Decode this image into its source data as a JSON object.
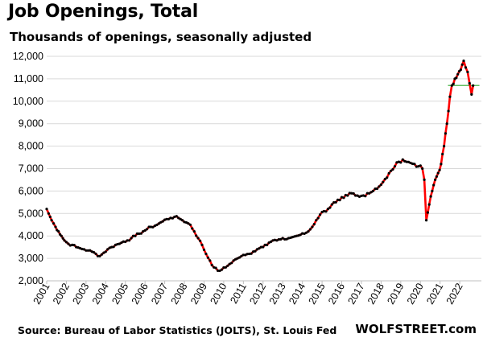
{
  "chart_data": {
    "type": "line",
    "title": "Job Openings, Total",
    "subtitle": "Thousands of openings, seasonally adjusted",
    "xlabel": "",
    "ylabel": "",
    "ylim": [
      2000,
      12000
    ],
    "xlim": [
      2001.0,
      2023.1
    ],
    "y_ticks": [
      "2,000",
      "3,000",
      "4,000",
      "5,000",
      "6,000",
      "7,000",
      "8,000",
      "9,000",
      "10,000",
      "11,000",
      "12,000"
    ],
    "y_tick_values": [
      2000,
      3000,
      4000,
      5000,
      6000,
      7000,
      8000,
      9000,
      10000,
      11000,
      12000
    ],
    "x_ticks": [
      "2001",
      "2002",
      "2003",
      "2004",
      "2005",
      "2006",
      "2007",
      "2008",
      "2009",
      "2010",
      "2011",
      "2012",
      "2013",
      "2014",
      "2015",
      "2016",
      "2017",
      "2018",
      "2019",
      "2020",
      "2021",
      "2022"
    ],
    "grid": true,
    "series": [
      {
        "color": "#ff0000",
        "marker_color": "#000000",
        "points": [
          [
            2001.0,
            5200
          ],
          [
            2001.1,
            5000
          ],
          [
            2001.25,
            4700
          ],
          [
            2001.45,
            4400
          ],
          [
            2001.6,
            4200
          ],
          [
            2001.75,
            4000
          ],
          [
            2001.9,
            3800
          ],
          [
            2002.1,
            3650
          ],
          [
            2002.3,
            3600
          ],
          [
            2002.5,
            3500
          ],
          [
            2002.7,
            3450
          ],
          [
            2002.9,
            3400
          ],
          [
            2003.1,
            3350
          ],
          [
            2003.3,
            3300
          ],
          [
            2003.5,
            3200
          ],
          [
            2003.7,
            3100
          ],
          [
            2003.9,
            3250
          ],
          [
            2004.1,
            3400
          ],
          [
            2004.3,
            3500
          ],
          [
            2004.5,
            3600
          ],
          [
            2004.7,
            3650
          ],
          [
            2004.9,
            3750
          ],
          [
            2005.1,
            3800
          ],
          [
            2005.3,
            3900
          ],
          [
            2005.5,
            4000
          ],
          [
            2005.7,
            4100
          ],
          [
            2005.9,
            4200
          ],
          [
            2006.1,
            4300
          ],
          [
            2006.3,
            4400
          ],
          [
            2006.5,
            4450
          ],
          [
            2006.7,
            4550
          ],
          [
            2006.9,
            4650
          ],
          [
            2007.1,
            4750
          ],
          [
            2007.3,
            4800
          ],
          [
            2007.5,
            4850
          ],
          [
            2007.7,
            4800
          ],
          [
            2007.9,
            4700
          ],
          [
            2008.1,
            4600
          ],
          [
            2008.3,
            4500
          ],
          [
            2008.5,
            4200
          ],
          [
            2008.7,
            3900
          ],
          [
            2008.9,
            3600
          ],
          [
            2009.1,
            3200
          ],
          [
            2009.3,
            2900
          ],
          [
            2009.5,
            2600
          ],
          [
            2009.7,
            2450
          ],
          [
            2009.9,
            2500
          ],
          [
            2010.1,
            2600
          ],
          [
            2010.3,
            2750
          ],
          [
            2010.5,
            2900
          ],
          [
            2010.7,
            3000
          ],
          [
            2010.9,
            3100
          ],
          [
            2011.1,
            3150
          ],
          [
            2011.3,
            3200
          ],
          [
            2011.5,
            3300
          ],
          [
            2011.7,
            3400
          ],
          [
            2011.9,
            3500
          ],
          [
            2012.1,
            3600
          ],
          [
            2012.3,
            3700
          ],
          [
            2012.5,
            3800
          ],
          [
            2012.7,
            3800
          ],
          [
            2012.9,
            3850
          ],
          [
            2013.1,
            3850
          ],
          [
            2013.3,
            3900
          ],
          [
            2013.5,
            3950
          ],
          [
            2013.7,
            4000
          ],
          [
            2013.9,
            4050
          ],
          [
            2014.1,
            4100
          ],
          [
            2014.3,
            4200
          ],
          [
            2014.5,
            4400
          ],
          [
            2014.7,
            4700
          ],
          [
            2014.9,
            4950
          ],
          [
            2015.1,
            5100
          ],
          [
            2015.3,
            5200
          ],
          [
            2015.5,
            5400
          ],
          [
            2015.7,
            5500
          ],
          [
            2015.9,
            5600
          ],
          [
            2016.1,
            5700
          ],
          [
            2016.3,
            5800
          ],
          [
            2016.5,
            5900
          ],
          [
            2016.7,
            5800
          ],
          [
            2016.9,
            5750
          ],
          [
            2017.1,
            5800
          ],
          [
            2017.3,
            5900
          ],
          [
            2017.5,
            5950
          ],
          [
            2017.7,
            6100
          ],
          [
            2017.9,
            6200
          ],
          [
            2018.1,
            6400
          ],
          [
            2018.3,
            6600
          ],
          [
            2018.5,
            6900
          ],
          [
            2018.7,
            7100
          ],
          [
            2018.9,
            7300
          ],
          [
            2019.1,
            7400
          ],
          [
            2019.3,
            7300
          ],
          [
            2019.5,
            7250
          ],
          [
            2019.7,
            7200
          ],
          [
            2019.9,
            7100
          ],
          [
            2020.1,
            7000
          ],
          [
            2020.2,
            6500
          ],
          [
            2020.3,
            4700
          ],
          [
            2020.45,
            5400
          ],
          [
            2020.6,
            6000
          ],
          [
            2020.75,
            6500
          ],
          [
            2020.9,
            6800
          ],
          [
            2021.05,
            7200
          ],
          [
            2021.2,
            8000
          ],
          [
            2021.35,
            9000
          ],
          [
            2021.5,
            10200
          ],
          [
            2021.6,
            10700
          ],
          [
            2021.75,
            11000
          ],
          [
            2021.9,
            11200
          ],
          [
            2022.05,
            11400
          ],
          [
            2022.2,
            11800
          ],
          [
            2022.3,
            11500
          ],
          [
            2022.4,
            11300
          ],
          [
            2022.5,
            10800
          ],
          [
            2022.6,
            10300
          ],
          [
            2022.68,
            10700
          ]
        ]
      }
    ],
    "reference_line": {
      "value": 10700,
      "x_from": 2021.4,
      "x_to": 2023.0,
      "color": "#5fbf5f"
    }
  },
  "footer": {
    "source": "Source: Bureau of Labor Statistics (JOLTS), St. Louis Fed",
    "brand": "WOLFSTREET.com"
  }
}
